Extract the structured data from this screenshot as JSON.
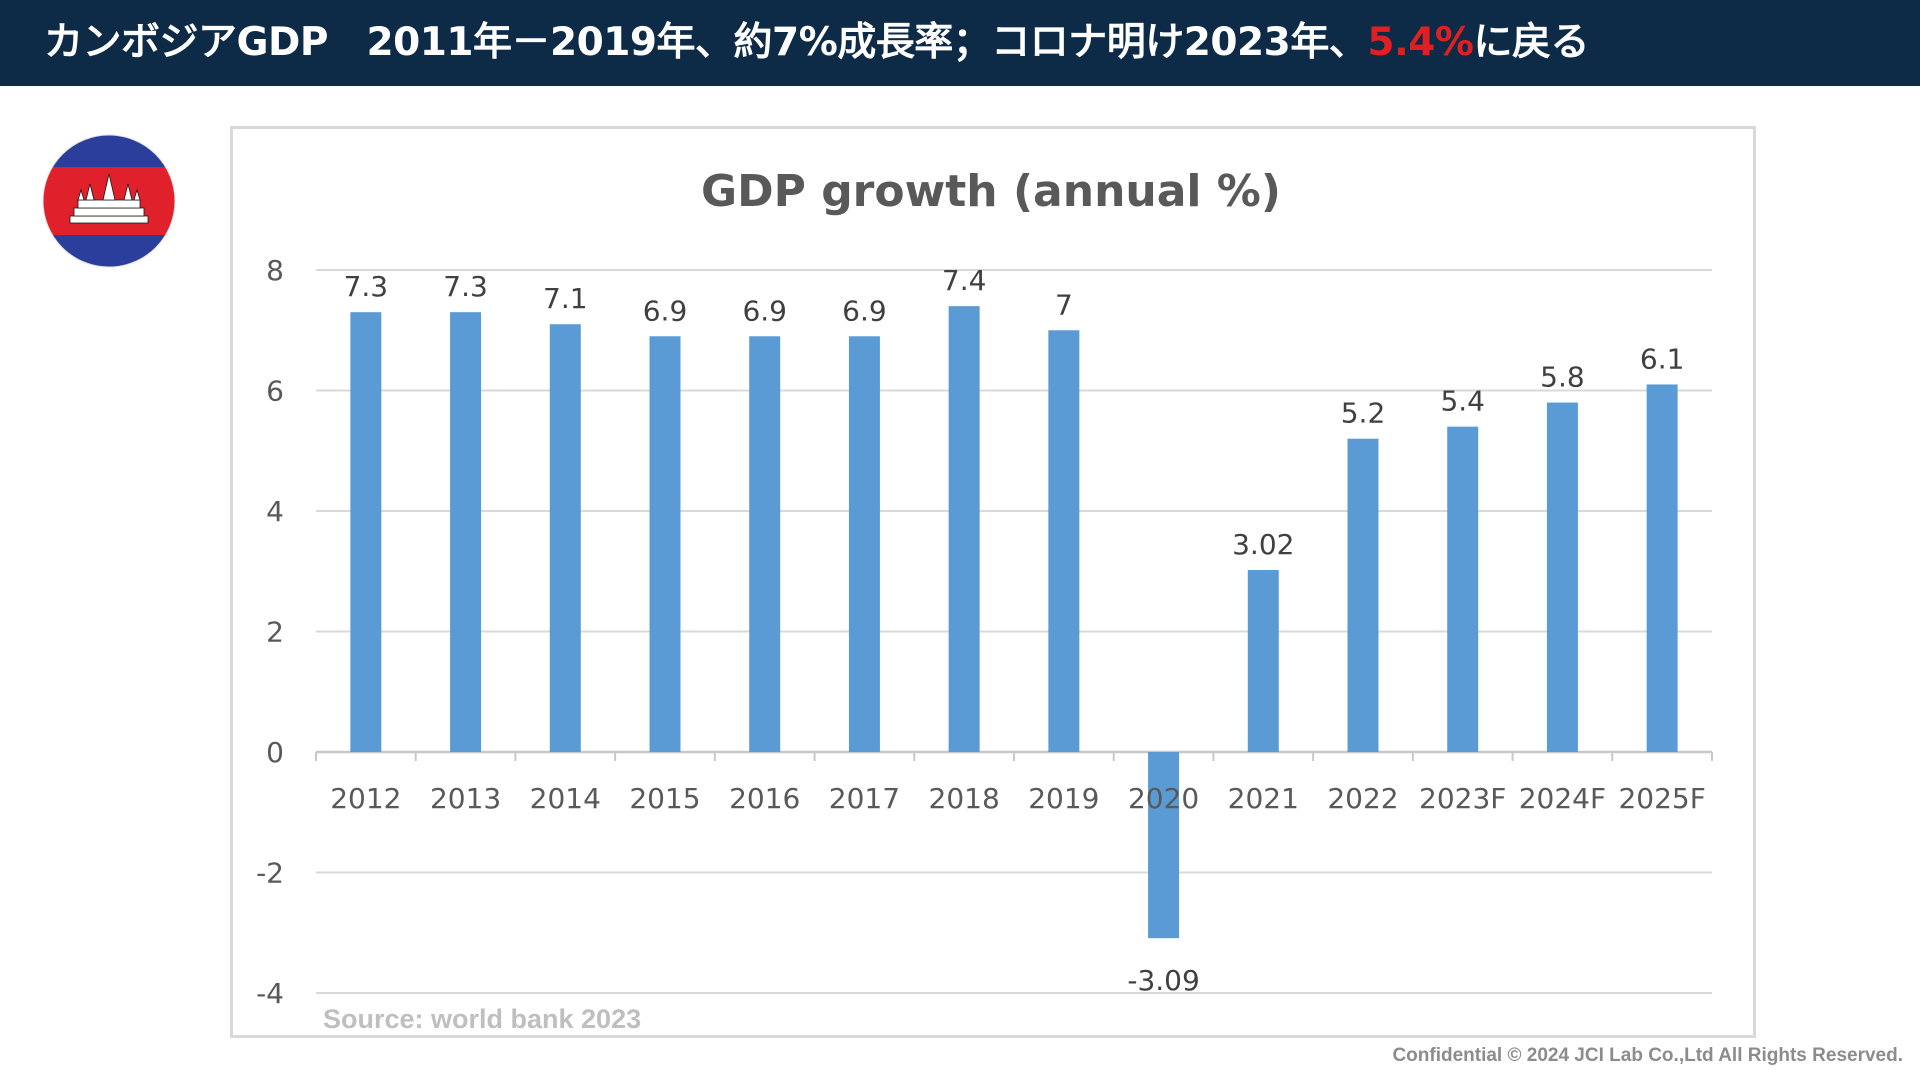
{
  "header": {
    "title_prefix": "カンボジアGDP　2011年－2019年、約7%成長率；コロナ明け2023年、",
    "title_highlight": "5.4%",
    "title_suffix": "に戻る",
    "background_color": "#0d2a47",
    "highlight_color": "#e02020"
  },
  "flag": {
    "icon": "cambodia-flag-icon",
    "colors": {
      "blue": "#2c3e9c",
      "red": "#e0202a",
      "white": "#ffffff"
    }
  },
  "chart_data": {
    "type": "bar",
    "title": "GDP growth (annual %)",
    "xlabel": "",
    "ylabel": "",
    "categories": [
      "2012",
      "2013",
      "2014",
      "2015",
      "2016",
      "2017",
      "2018",
      "2019",
      "2020",
      "2021",
      "2022",
      "2023F",
      "2024F",
      "2025F"
    ],
    "values": [
      7.3,
      7.3,
      7.1,
      6.9,
      6.9,
      6.9,
      7.4,
      7,
      -3.09,
      3.02,
      5.2,
      5.4,
      5.8,
      6.1
    ],
    "data_labels": [
      "7.3",
      "7.3",
      "7.1",
      "6.9",
      "6.9",
      "6.9",
      "7.4",
      "7",
      "-3.09",
      "3.02",
      "5.2",
      "5.4",
      "5.8",
      "6.1"
    ],
    "ylim": [
      -4,
      8
    ],
    "yticks": [
      8,
      6,
      4,
      2,
      0,
      -2,
      -4
    ],
    "grid": true,
    "legend": "none",
    "bar_color": "#5b9bd5"
  },
  "source": "Source: world bank 2023",
  "footer": "Confidential © 2024 JCI Lab Co.,Ltd All Rights Reserved."
}
